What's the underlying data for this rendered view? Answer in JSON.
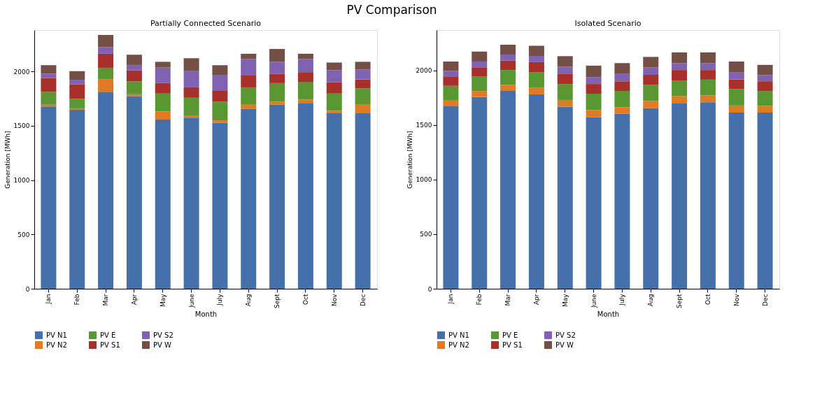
{
  "chart_data": [
    {
      "type": "bar",
      "title": "Partially Connected Scenario",
      "annotations": [
        "PV Comparison"
      ],
      "xlabel": "Month",
      "ylabel": "Generation [MWh]",
      "stacked": true,
      "legend": "bottom",
      "grid": false,
      "ylim": [
        0,
        2380
      ],
      "yticks": [
        0,
        500,
        1000,
        1500,
        2000
      ],
      "categories": [
        "Jan",
        "Feb",
        "Mar",
        "Apr",
        "May",
        "June",
        "July",
        "Aug",
        "Sept",
        "Oct",
        "Nov",
        "Dec"
      ],
      "series": [
        {
          "name": "PV N1",
          "color": "#4670aa",
          "values": [
            1678,
            1647,
            1813,
            1770,
            1557,
            1575,
            1526,
            1654,
            1695,
            1710,
            1614,
            1614
          ]
        },
        {
          "name": "PV N2",
          "color": "#e07b23",
          "values": [
            15,
            13,
            112,
            19,
            74,
            15,
            24,
            39,
            27,
            31,
            24,
            79
          ]
        },
        {
          "name": "PV E",
          "color": "#5a9632",
          "values": [
            118,
            88,
            108,
            119,
            165,
            167,
            171,
            160,
            170,
            158,
            158,
            151
          ]
        },
        {
          "name": "PV S1",
          "color": "#a8302a",
          "values": [
            128,
            134,
            129,
            101,
            97,
            96,
            99,
            114,
            84,
            94,
            105,
            82
          ]
        },
        {
          "name": "PV S2",
          "color": "#8062b3",
          "values": [
            39,
            41,
            62,
            50,
            142,
            149,
            143,
            147,
            112,
            121,
            110,
            92
          ]
        },
        {
          "name": "PV W",
          "color": "#734f45",
          "values": [
            79,
            79,
            111,
            94,
            53,
            119,
            94,
            48,
            118,
            48,
            70,
            70
          ]
        }
      ]
    },
    {
      "type": "bar",
      "title": "Isolated Scenario",
      "xlabel": "Month",
      "ylabel": "Generation [MWh]",
      "stacked": true,
      "legend": "bottom",
      "grid": false,
      "ylim": [
        0,
        2370
      ],
      "yticks": [
        0,
        500,
        1000,
        1500,
        2000
      ],
      "categories": [
        "Jan",
        "Feb",
        "Mar",
        "Apr",
        "May",
        "June",
        "July",
        "Aug",
        "Sept",
        "Oct",
        "Nov",
        "Dec"
      ],
      "series": [
        {
          "name": "PV N1",
          "color": "#4670aa",
          "values": [
            1677,
            1757,
            1812,
            1781,
            1669,
            1572,
            1605,
            1654,
            1702,
            1709,
            1614,
            1614
          ]
        },
        {
          "name": "PV N2",
          "color": "#e07b23",
          "values": [
            53,
            55,
            55,
            63,
            61,
            65,
            57,
            67,
            62,
            63,
            65,
            63
          ]
        },
        {
          "name": "PV E",
          "color": "#5a9632",
          "values": [
            129,
            131,
            137,
            141,
            146,
            150,
            150,
            148,
            145,
            144,
            150,
            135
          ]
        },
        {
          "name": "PV S1",
          "color": "#a8302a",
          "values": [
            82,
            86,
            87,
            91,
            95,
            89,
            89,
            91,
            95,
            88,
            89,
            89
          ]
        },
        {
          "name": "PV S2",
          "color": "#8062b3",
          "values": [
            55,
            53,
            55,
            57,
            63,
            63,
            67,
            67,
            63,
            63,
            67,
            57
          ]
        },
        {
          "name": "PV W",
          "color": "#734f45",
          "values": [
            86,
            91,
            90,
            93,
            97,
            105,
            99,
            97,
            98,
            98,
            97,
            93
          ]
        }
      ]
    }
  ]
}
